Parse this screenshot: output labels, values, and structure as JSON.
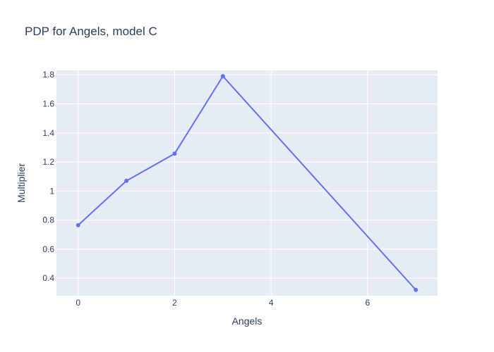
{
  "chart_data": {
    "type": "line",
    "title": "PDP for Angels, model C",
    "xlabel": "Angels",
    "ylabel": "Multiplier",
    "xlim": [
      -0.45,
      7.45
    ],
    "ylim": [
      0.28,
      1.83
    ],
    "xticks": [
      0,
      2,
      4,
      6
    ],
    "xtick_labels": [
      "0",
      "2",
      "4",
      "6"
    ],
    "yticks": [
      0.4,
      0.6,
      0.8,
      1.0,
      1.2,
      1.4,
      1.6,
      1.8
    ],
    "ytick_labels": [
      "0.4",
      "0.6",
      "0.8",
      "1",
      "1.2",
      "1.4",
      "1.6",
      "1.8"
    ],
    "grid": true,
    "series": [
      {
        "x": [
          0,
          1,
          2,
          3,
          7
        ],
        "y": [
          0.765,
          1.07,
          1.257,
          1.79,
          0.32
        ]
      }
    ],
    "colors": {
      "line": "#636efa",
      "plot_bg": "#e5ecf6",
      "grid": "#ffffff",
      "text": "#2a3f5f"
    }
  }
}
